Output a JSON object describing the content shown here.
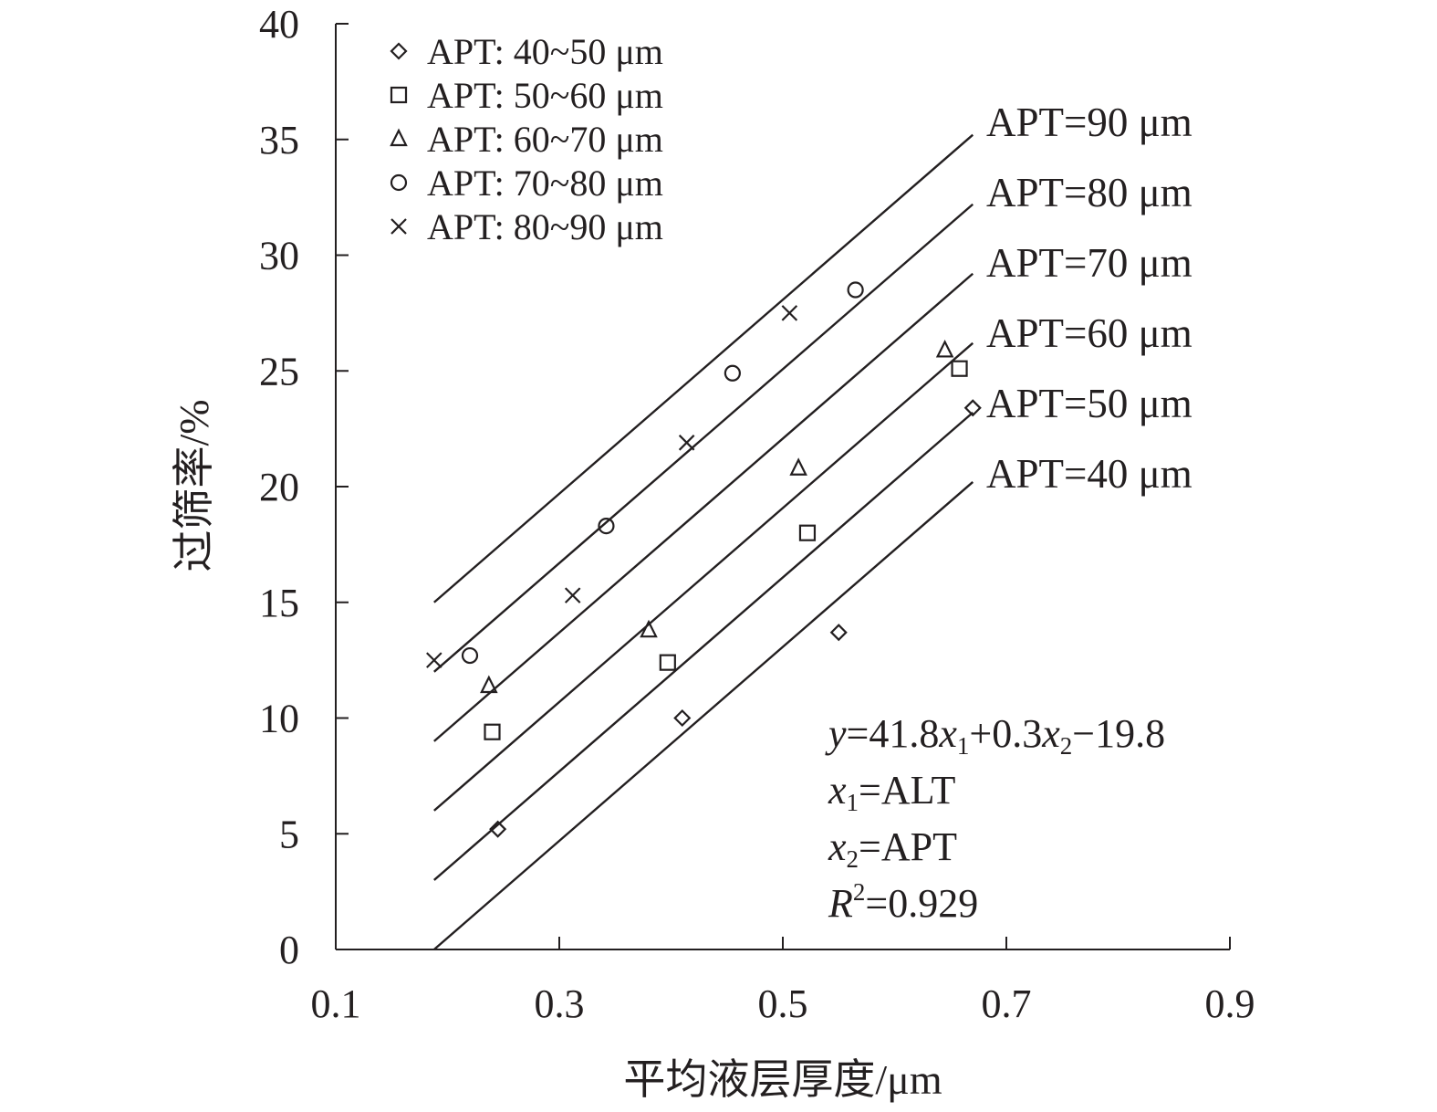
{
  "chart_data": {
    "type": "scatter",
    "title": "",
    "xlabel": "平均液层厚度/μm",
    "ylabel": "过筛率/%",
    "xlim": [
      0.1,
      0.9
    ],
    "ylim": [
      0,
      40
    ],
    "xticks": [
      "0.1",
      "0.3",
      "0.5",
      "0.7",
      "0.9"
    ],
    "yticks": [
      "0",
      "5",
      "10",
      "15",
      "20",
      "25",
      "30",
      "35",
      "40"
    ],
    "legend_position": "top-left",
    "series": [
      {
        "name": "APT: 40~50 μm",
        "marker": "diamond",
        "x": [
          0.245,
          0.41,
          0.55,
          0.67
        ],
        "y": [
          5.2,
          10.0,
          13.7,
          23.4
        ]
      },
      {
        "name": "APT: 50~60 μm",
        "marker": "square",
        "x": [
          0.24,
          0.397,
          0.522,
          0.658
        ],
        "y": [
          9.4,
          12.4,
          18.0,
          25.1
        ]
      },
      {
        "name": "APT: 60~70 μm",
        "marker": "triangle",
        "x": [
          0.237,
          0.38,
          0.514,
          0.645
        ],
        "y": [
          11.4,
          13.8,
          20.8,
          25.9
        ]
      },
      {
        "name": "APT: 70~80 μm",
        "marker": "circle",
        "x": [
          0.22,
          0.342,
          0.455,
          0.565
        ],
        "y": [
          12.7,
          18.3,
          24.9,
          28.5
        ]
      },
      {
        "name": "APT: 80~90 μm",
        "marker": "cross",
        "x": [
          0.188,
          0.312,
          0.414,
          0.506
        ],
        "y": [
          12.5,
          15.3,
          21.9,
          27.5
        ]
      }
    ],
    "fit_lines": [
      {
        "label": "APT=90 μm",
        "x_range": [
          0.188,
          0.67
        ],
        "y_range": [
          15.0,
          35.2
        ]
      },
      {
        "label": "APT=80 μm",
        "x_range": [
          0.188,
          0.67
        ],
        "y_range": [
          12.0,
          32.2
        ]
      },
      {
        "label": "APT=70 μm",
        "x_range": [
          0.188,
          0.67
        ],
        "y_range": [
          9.0,
          29.2
        ]
      },
      {
        "label": "APT=60 μm",
        "x_range": [
          0.188,
          0.67
        ],
        "y_range": [
          6.0,
          26.2
        ]
      },
      {
        "label": "APT=50 μm",
        "x_range": [
          0.188,
          0.67
        ],
        "y_range": [
          3.0,
          23.2
        ]
      },
      {
        "label": "APT=40 μm",
        "x_range": [
          0.188,
          0.67
        ],
        "y_range": [
          0.0,
          20.2
        ]
      }
    ],
    "annotation": {
      "equation": {
        "y": "y",
        "eq1": "=41.8",
        "x1": "x",
        "sub1": "1",
        "eq2": "+0.3",
        "x2": "x",
        "sub2": "2",
        "eq3": "−19.8"
      },
      "x1_def": {
        "var": "x",
        "sub": "1",
        "rest": "=ALT"
      },
      "x2_def": {
        "var": "x",
        "sub": "2",
        "rest": "=APT"
      },
      "r2": {
        "var": "R",
        "sup": "2",
        "rest": "=0.929"
      }
    }
  }
}
